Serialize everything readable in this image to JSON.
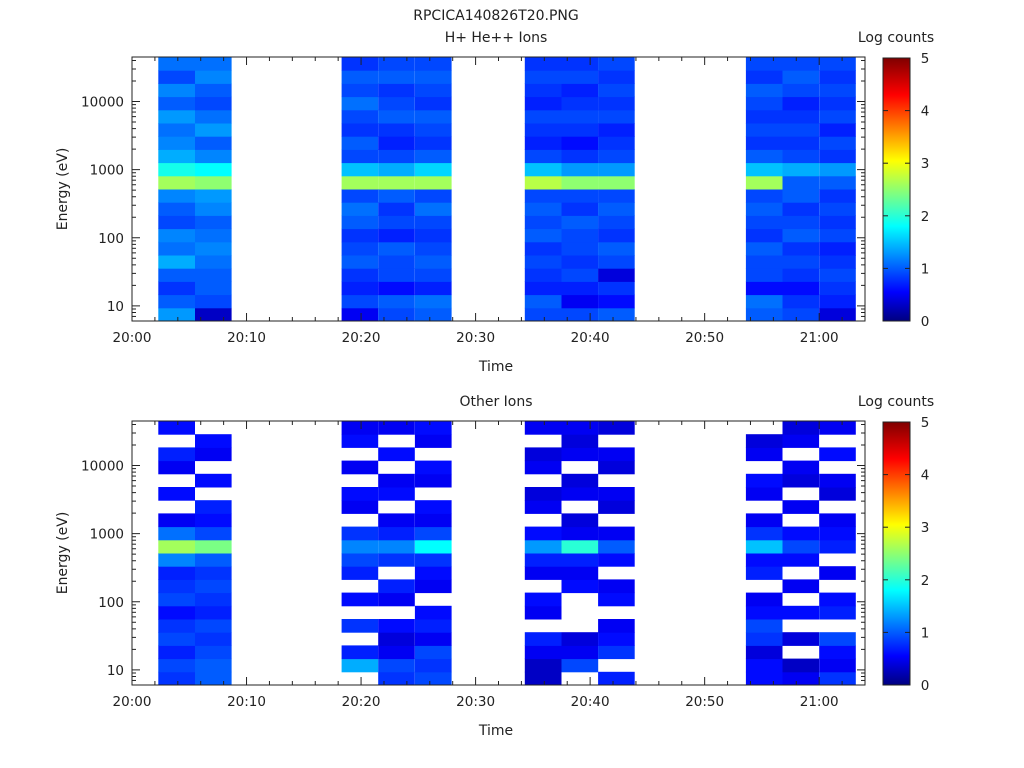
{
  "figure_title": "RPCICA140826T20.PNG",
  "colors": {
    "colormap": [
      "#000080",
      "#0000ff",
      "#00ffff",
      "#ffff00",
      "#ff0000",
      "#800000"
    ]
  },
  "chart_data": [
    {
      "type": "heatmap",
      "title": "H+ He++ Ions",
      "xlabel": "Time",
      "ylabel": "Energy (eV)",
      "x_ticks": [
        "20:00",
        "20:10",
        "20:20",
        "20:30",
        "20:40",
        "20:50",
        "21:00"
      ],
      "x_tick_minutes": [
        0,
        10,
        20,
        30,
        40,
        50,
        60
      ],
      "xlim_minutes": [
        0,
        64
      ],
      "y_scale": "log",
      "ylim": [
        6,
        45000
      ],
      "y_ticks": [
        "10",
        "100",
        "1000",
        "10000"
      ],
      "y_tick_values": [
        10,
        100,
        1000,
        10000
      ],
      "colorbar": {
        "label": "Log counts",
        "range": [
          0,
          5
        ],
        "ticks": [
          "0",
          "1",
          "2",
          "3",
          "4",
          "5"
        ]
      },
      "scan_columns_minutes": [
        [
          2.3,
          5.5
        ],
        [
          5.5,
          8.7
        ],
        [
          18.3,
          21.5
        ],
        [
          21.5,
          24.7
        ],
        [
          24.7,
          27.9
        ],
        [
          34.3,
          37.5
        ],
        [
          37.5,
          40.7
        ],
        [
          40.7,
          43.9
        ],
        [
          53.6,
          56.8
        ],
        [
          56.8,
          60.0
        ],
        [
          60.0,
          63.2
        ]
      ],
      "band_levels": {
        "energy_range_eV": [
          6,
          45000
        ],
        "description": "log counts per scan column, low to high energy",
        "columns": [
          [
            1.3,
            1.0,
            0.8,
            1.0,
            1.4,
            1.1,
            1.2,
            0.9,
            1.0,
            1.2,
            2.6,
            1.9,
            1.4,
            1.2,
            1.1,
            1.3,
            1.0,
            1.2,
            0.9,
            1.1
          ],
          [
            0.3,
            0.9,
            1.0,
            1.0,
            1.1,
            1.2,
            1.1,
            1.0,
            1.2,
            1.3,
            2.5,
            1.8,
            1.2,
            1.0,
            1.3,
            1.1,
            0.9,
            1.0,
            1.2,
            1.1
          ],
          [
            0.5,
            0.9,
            0.7,
            0.8,
            1.0,
            0.9,
            0.8,
            1.0,
            1.1,
            0.9,
            2.6,
            1.5,
            0.9,
            1.0,
            0.8,
            0.9,
            1.1,
            0.9,
            1.0,
            0.8
          ],
          [
            0.9,
            1.0,
            0.6,
            0.9,
            0.9,
            1.0,
            0.7,
            0.9,
            0.8,
            1.0,
            2.6,
            1.4,
            0.9,
            0.7,
            0.8,
            1.0,
            0.9,
            0.8,
            1.0,
            0.9
          ],
          [
            1.0,
            1.1,
            0.7,
            0.9,
            1.0,
            0.9,
            0.8,
            0.9,
            1.1,
            0.9,
            2.6,
            1.6,
            1.0,
            0.8,
            0.9,
            1.0,
            0.8,
            0.9,
            1.0,
            0.9
          ],
          [
            0.9,
            1.0,
            0.7,
            0.8,
            0.9,
            0.8,
            1.0,
            0.9,
            1.0,
            0.9,
            2.7,
            1.5,
            0.9,
            0.7,
            0.8,
            0.9,
            0.7,
            0.8,
            0.9,
            0.8
          ],
          [
            0.9,
            0.5,
            0.7,
            0.9,
            0.8,
            0.9,
            0.9,
            1.0,
            0.8,
            0.9,
            2.5,
            1.3,
            0.8,
            0.6,
            0.8,
            0.9,
            0.8,
            0.7,
            0.9,
            0.8
          ],
          [
            1.0,
            0.6,
            0.8,
            0.4,
            0.9,
            1.0,
            0.8,
            0.9,
            1.0,
            0.9,
            2.5,
            1.3,
            0.9,
            0.8,
            0.7,
            0.9,
            0.8,
            0.9,
            0.8,
            0.9
          ],
          [
            1.0,
            1.1,
            0.6,
            0.9,
            0.9,
            1.0,
            0.8,
            0.9,
            1.0,
            0.9,
            2.6,
            1.5,
            1.0,
            0.8,
            0.9,
            0.8,
            0.9,
            1.0,
            0.8,
            0.9
          ],
          [
            0.9,
            0.8,
            0.6,
            0.8,
            0.9,
            0.8,
            1.0,
            0.9,
            0.8,
            1.0,
            1.0,
            1.4,
            0.9,
            0.8,
            0.9,
            0.8,
            0.7,
            0.9,
            1.0,
            0.9
          ],
          [
            0.4,
            0.7,
            0.8,
            0.9,
            0.8,
            0.7,
            0.9,
            0.8,
            0.9,
            0.8,
            1.0,
            1.3,
            0.8,
            0.9,
            0.7,
            0.9,
            0.8,
            0.9,
            0.8,
            0.9
          ]
        ]
      }
    },
    {
      "type": "heatmap",
      "title": "Other Ions",
      "xlabel": "Time",
      "ylabel": "Energy (eV)",
      "x_ticks": [
        "20:00",
        "20:10",
        "20:20",
        "20:30",
        "20:40",
        "20:50",
        "21:00"
      ],
      "x_tick_minutes": [
        0,
        10,
        20,
        30,
        40,
        50,
        60
      ],
      "xlim_minutes": [
        0,
        64
      ],
      "y_scale": "log",
      "ylim": [
        6,
        45000
      ],
      "y_ticks": [
        "10",
        "100",
        "1000",
        "10000"
      ],
      "y_tick_values": [
        10,
        100,
        1000,
        10000
      ],
      "colorbar": {
        "label": "Log counts",
        "range": [
          0,
          5
        ],
        "ticks": [
          "0",
          "1",
          "2",
          "3",
          "4",
          "5"
        ]
      },
      "scan_columns_minutes": [
        [
          2.3,
          5.5
        ],
        [
          5.5,
          8.7
        ],
        [
          18.3,
          21.5
        ],
        [
          21.5,
          24.7
        ],
        [
          24.7,
          27.9
        ],
        [
          34.3,
          37.5
        ],
        [
          37.5,
          40.7
        ],
        [
          40.7,
          43.9
        ],
        [
          53.6,
          56.8
        ],
        [
          56.8,
          60.0
        ],
        [
          60.0,
          63.2
        ]
      ],
      "band_levels": {
        "energy_range_eV": [
          6,
          45000
        ],
        "description": "log counts per scan column, low to high energy; null = no counts (white)",
        "columns": [
          [
            0.8,
            0.9,
            0.7,
            0.9,
            0.8,
            0.6,
            0.9,
            0.8,
            0.7,
            1.2,
            2.6,
            1.1,
            0.5,
            null,
            0.6,
            null,
            0.5,
            0.7,
            null,
            0.6
          ],
          [
            1.0,
            1.0,
            0.9,
            0.8,
            0.9,
            0.7,
            0.8,
            0.9,
            0.8,
            1.0,
            2.4,
            0.9,
            0.6,
            0.7,
            null,
            0.6,
            null,
            0.5,
            0.6,
            null
          ],
          [
            null,
            1.4,
            0.7,
            null,
            0.8,
            null,
            0.6,
            null,
            0.7,
            0.9,
            1.2,
            0.8,
            null,
            0.5,
            0.6,
            null,
            0.5,
            null,
            0.6,
            0.5
          ],
          [
            0.8,
            0.9,
            0.5,
            0.4,
            0.6,
            null,
            0.5,
            0.7,
            null,
            0.8,
            1.2,
            0.7,
            0.5,
            null,
            0.6,
            0.5,
            null,
            0.6,
            null,
            0.5
          ],
          [
            0.9,
            0.8,
            0.9,
            0.5,
            0.7,
            0.6,
            null,
            0.5,
            0.6,
            0.8,
            1.8,
            0.9,
            0.5,
            0.6,
            null,
            0.5,
            0.6,
            null,
            0.5,
            0.6
          ],
          [
            0.3,
            0.3,
            0.5,
            0.7,
            null,
            0.5,
            0.6,
            null,
            0.5,
            0.7,
            1.3,
            0.6,
            null,
            0.5,
            0.4,
            null,
            0.5,
            0.4,
            null,
            0.5
          ],
          [
            null,
            0.9,
            0.5,
            0.4,
            null,
            null,
            null,
            0.6,
            0.5,
            0.7,
            2.0,
            0.5,
            0.4,
            null,
            0.5,
            0.4,
            null,
            0.5,
            0.4,
            0.5
          ],
          [
            0.7,
            null,
            0.8,
            0.6,
            0.5,
            null,
            0.6,
            0.5,
            null,
            0.6,
            1.0,
            0.5,
            null,
            0.4,
            0.5,
            null,
            0.4,
            0.5,
            null,
            0.4
          ],
          [
            0.6,
            0.6,
            0.4,
            0.8,
            0.9,
            0.6,
            0.5,
            null,
            0.7,
            0.6,
            1.5,
            0.8,
            0.5,
            null,
            0.5,
            0.6,
            null,
            0.5,
            0.4,
            null
          ],
          [
            0.5,
            0.3,
            null,
            0.4,
            null,
            0.6,
            null,
            0.5,
            null,
            0.6,
            0.9,
            0.6,
            null,
            0.5,
            null,
            0.4,
            0.5,
            null,
            0.5,
            0.4
          ],
          [
            0.8,
            0.5,
            0.6,
            0.9,
            null,
            0.7,
            0.6,
            null,
            0.5,
            null,
            0.7,
            0.6,
            0.5,
            null,
            0.4,
            0.5,
            null,
            0.6,
            null,
            0.5
          ]
        ]
      }
    }
  ]
}
